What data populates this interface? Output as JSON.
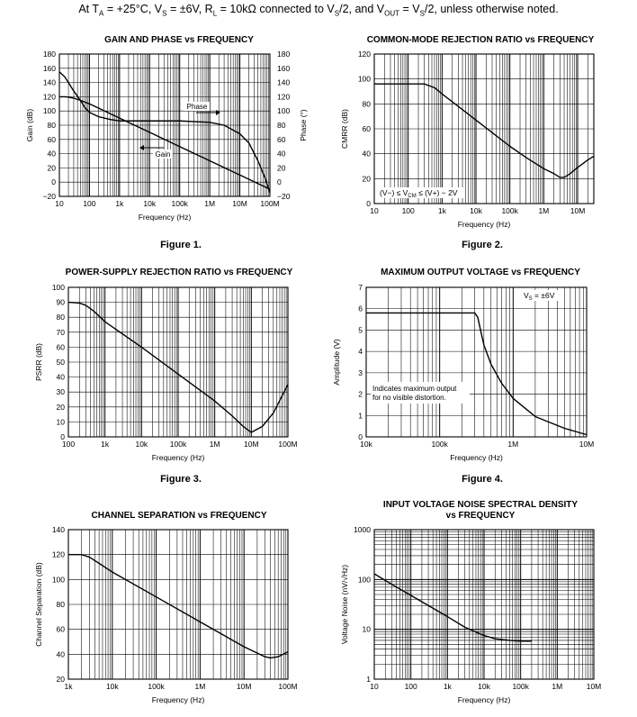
{
  "header": {
    "prefix": "At T",
    "ta_sub": "A",
    "t1": " = +25°C, V",
    "vs_sub": "S",
    "t2": " = ±6V, R",
    "rl_sub": "L",
    "t3": " = 10kΩ connected to V",
    "vs2_sub": "S",
    "t4": "/2, and V",
    "vout_sub": "OUT",
    "t5": " = V",
    "vs3_sub": "S",
    "t6": "/2, unless otherwise noted."
  },
  "figure_labels": [
    "Figure 1.",
    "Figure 2.",
    "Figure 3.",
    "Figure 4."
  ],
  "chart_data": [
    {
      "id": "c1",
      "type": "line",
      "title": "GAIN AND PHASE vs FREQUENCY",
      "xlabel": "Frequency (Hz)",
      "ylabel": "Gain (dB)",
      "y2label": "Phase (°)",
      "xscale": "log",
      "xlim": [
        10,
        100000000
      ],
      "ylim": [
        -20,
        180
      ],
      "y2lim": [
        -20,
        180
      ],
      "xticks": [
        10,
        100,
        1000,
        10000,
        100000,
        1000000,
        10000000,
        100000000
      ],
      "xtick_labels": [
        "10",
        "100",
        "1k",
        "10k",
        "100k",
        "1M",
        "10M",
        "100M"
      ],
      "yticks": [
        -20,
        0,
        20,
        40,
        60,
        80,
        100,
        120,
        140,
        160,
        180
      ],
      "ytick_labels": [
        "−20",
        "0",
        "20",
        "40",
        "60",
        "80",
        "100",
        "120",
        "140",
        "160",
        "180"
      ],
      "y2ticks": [
        -20,
        0,
        20,
        40,
        60,
        80,
        100,
        120,
        140,
        160,
        180
      ],
      "y2tick_labels": [
        "−20",
        "0",
        "20",
        "40",
        "60",
        "80",
        "100",
        "120",
        "140",
        "160",
        "180"
      ],
      "grid": true,
      "series": [
        {
          "name": "Gain",
          "x": [
            10,
            15,
            20,
            30,
            50,
            100,
            200,
            500,
            1000,
            10000,
            100000,
            1000000,
            10000000,
            100000000
          ],
          "y": [
            120,
            120,
            119.5,
            118,
            115,
            110,
            104,
            96,
            90,
            70,
            50,
            30,
            10,
            -10
          ]
        },
        {
          "name": "Phase",
          "x": [
            10,
            15,
            20,
            30,
            50,
            70,
            100,
            200,
            500,
            1000,
            10000,
            100000,
            1000000,
            3000000,
            10000000,
            20000000,
            40000000,
            70000000,
            100000000
          ],
          "y": [
            155,
            148,
            140,
            128,
            115,
            105,
            98,
            92,
            88,
            86,
            86,
            86,
            84,
            80,
            68,
            55,
            30,
            5,
            -15
          ]
        }
      ]
    },
    {
      "id": "c2",
      "type": "line",
      "title": "COMMON-MODE REJECTION RATIO vs FREQUENCY",
      "xlabel": "Frequency (Hz)",
      "ylabel": "CMRR (dB)",
      "xscale": "log",
      "xlim": [
        10,
        30000000
      ],
      "ylim": [
        0,
        120
      ],
      "xticks": [
        10,
        100,
        1000,
        10000,
        100000,
        1000000,
        10000000
      ],
      "xtick_labels": [
        "10",
        "100",
        "1k",
        "10k",
        "100k",
        "1M",
        "10M"
      ],
      "yticks": [
        0,
        20,
        40,
        60,
        80,
        100,
        120
      ],
      "ytick_labels": [
        "0",
        "20",
        "40",
        "60",
        "80",
        "100",
        "120"
      ],
      "grid": true,
      "series": [
        {
          "x": [
            10,
            100,
            300,
            600,
            1000,
            3000,
            10000,
            30000,
            100000,
            300000,
            1000000,
            2000000,
            3000000,
            4000000,
            6000000,
            10000000,
            20000000,
            30000000
          ],
          "y": [
            96,
            96,
            96,
            93,
            88,
            78,
            67,
            57,
            46,
            37,
            28,
            24,
            21,
            21,
            24,
            29,
            35,
            38
          ]
        }
      ],
      "annotation": {
        "a": "(V−) ≤ V",
        "sub": "CM",
        "b": " ≤ (V+) − 2V"
      }
    },
    {
      "id": "c3",
      "type": "line",
      "title": "POWER-SUPPLY REJECTION RATIO vs FREQUENCY",
      "xlabel": "Frequency (Hz)",
      "ylabel": "PSRR (dB)",
      "xscale": "log",
      "xlim": [
        100,
        100000000
      ],
      "ylim": [
        0,
        100
      ],
      "xticks": [
        100,
        1000,
        10000,
        100000,
        1000000,
        10000000,
        100000000
      ],
      "xtick_labels": [
        "100",
        "1k",
        "10k",
        "100k",
        "1M",
        "10M",
        "100M"
      ],
      "yticks": [
        0,
        10,
        20,
        30,
        40,
        50,
        60,
        70,
        80,
        90,
        100
      ],
      "ytick_labels": [
        "0",
        "10",
        "20",
        "30",
        "40",
        "50",
        "60",
        "70",
        "80",
        "90",
        "100"
      ],
      "grid": true,
      "series": [
        {
          "x": [
            100,
            200,
            300,
            500,
            1000,
            10000,
            100000,
            1000000,
            3000000,
            6000000,
            10000000,
            20000000,
            40000000,
            100000000
          ],
          "y": [
            90,
            89.5,
            88,
            84,
            77,
            60,
            42,
            24,
            14,
            7,
            3,
            7,
            16,
            35
          ]
        }
      ]
    },
    {
      "id": "c4",
      "type": "line",
      "title": "MAXIMUM OUTPUT VOLTAGE vs FREQUENCY",
      "xlabel": "Frequency (Hz)",
      "ylabel": "Amplitude (V)",
      "xscale": "log",
      "xlim": [
        10000,
        10000000
      ],
      "ylim": [
        0,
        7
      ],
      "xticks": [
        10000,
        100000,
        1000000,
        10000000
      ],
      "xtick_labels": [
        "10k",
        "100k",
        "1M",
        "10M"
      ],
      "yticks": [
        0,
        1,
        2,
        3,
        4,
        5,
        6,
        7
      ],
      "ytick_labels": [
        "0",
        "1",
        "2",
        "3",
        "4",
        "5",
        "6",
        "7"
      ],
      "grid": true,
      "series": [
        {
          "x": [
            10000,
            100000,
            300000,
            330000,
            360000,
            400000,
            500000,
            700000,
            1000000,
            2000000,
            5000000,
            10000000
          ],
          "y": [
            5.8,
            5.8,
            5.8,
            5.6,
            5.0,
            4.3,
            3.4,
            2.5,
            1.8,
            0.95,
            0.4,
            0.1
          ]
        }
      ],
      "legend": {
        "a": "V",
        "sub": "S",
        "b": " = ±6V"
      },
      "annotation": [
        "Indicates maximum output",
        "for no visible distortion."
      ]
    },
    {
      "id": "c5",
      "type": "line",
      "title": "CHANNEL SEPARATION vs FREQUENCY",
      "xlabel": "Frequency (Hz)",
      "ylabel": "Channel Separation (dB)",
      "xscale": "log",
      "xlim": [
        1000,
        100000000
      ],
      "ylim": [
        20,
        140
      ],
      "xticks": [
        1000,
        10000,
        100000,
        1000000,
        10000000,
        100000000
      ],
      "xtick_labels": [
        "1k",
        "10k",
        "100k",
        "1M",
        "10M",
        "100M"
      ],
      "yticks": [
        20,
        40,
        60,
        80,
        100,
        120,
        140
      ],
      "ytick_labels": [
        "20",
        "40",
        "60",
        "80",
        "100",
        "120",
        "140"
      ],
      "grid": true,
      "series": [
        {
          "x": [
            1000,
            2000,
            3000,
            5000,
            10000,
            100000,
            1000000,
            10000000,
            30000000,
            40000000,
            60000000,
            100000000
          ],
          "y": [
            120,
            120,
            118,
            113,
            106,
            86,
            66,
            46,
            38,
            37,
            38,
            42
          ]
        }
      ]
    },
    {
      "id": "c6",
      "type": "line",
      "title": "INPUT VOLTAGE NOISE SPECTRAL DENSITY",
      "title2": "vs FREQUENCY",
      "xlabel": "Frequency (Hz)",
      "ylabel": "Voltage Noise (nV/√Hz)",
      "xscale": "log",
      "yscale": "log",
      "xlim": [
        10,
        10000000
      ],
      "ylim": [
        1,
        1000
      ],
      "xticks": [
        10,
        100,
        1000,
        10000,
        100000,
        1000000,
        10000000
      ],
      "xtick_labels": [
        "10",
        "100",
        "1k",
        "10k",
        "100k",
        "1M",
        "10M"
      ],
      "yticks": [
        1,
        10,
        100,
        1000
      ],
      "ytick_labels": [
        "1",
        "10",
        "100",
        "1000"
      ],
      "grid": true,
      "series": [
        {
          "x": [
            10,
            30,
            100,
            300,
            1000,
            3000,
            10000,
            20000,
            50000,
            100000,
            200000
          ],
          "y": [
            130,
            80,
            48,
            30,
            18,
            11,
            7.5,
            6.5,
            6,
            5.8,
            5.8
          ]
        }
      ]
    }
  ]
}
